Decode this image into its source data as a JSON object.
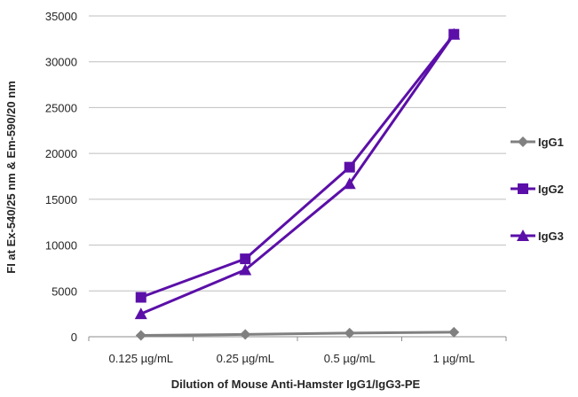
{
  "chart_data": {
    "type": "line",
    "title": "",
    "xlabel": "Dilution of Mouse Anti-Hamster IgG1/IgG3-PE",
    "ylabel": "FI at Ex-540/25 nm & Em-590/20 nm",
    "categories": [
      "0.125 µg/mL",
      "0.25 µg/mL",
      "0.5 µg/mL",
      "1 µg/mL"
    ],
    "ylim": [
      0,
      35000
    ],
    "yticks": [
      "0",
      "5000",
      "10000",
      "15000",
      "20000",
      "25000",
      "30000",
      "35000"
    ],
    "grid": true,
    "legend_position": "right",
    "series": [
      {
        "name": "IgG1",
        "color": "#808080",
        "marker": "diamond",
        "values": [
          150,
          250,
          400,
          500
        ]
      },
      {
        "name": "IgG2",
        "color": "#5b0fa8",
        "marker": "square",
        "values": [
          4300,
          8500,
          18500,
          33000
        ]
      },
      {
        "name": "IgG3",
        "color": "#5b0fa8",
        "marker": "triangle",
        "values": [
          2500,
          7300,
          16700,
          33000
        ]
      }
    ]
  }
}
